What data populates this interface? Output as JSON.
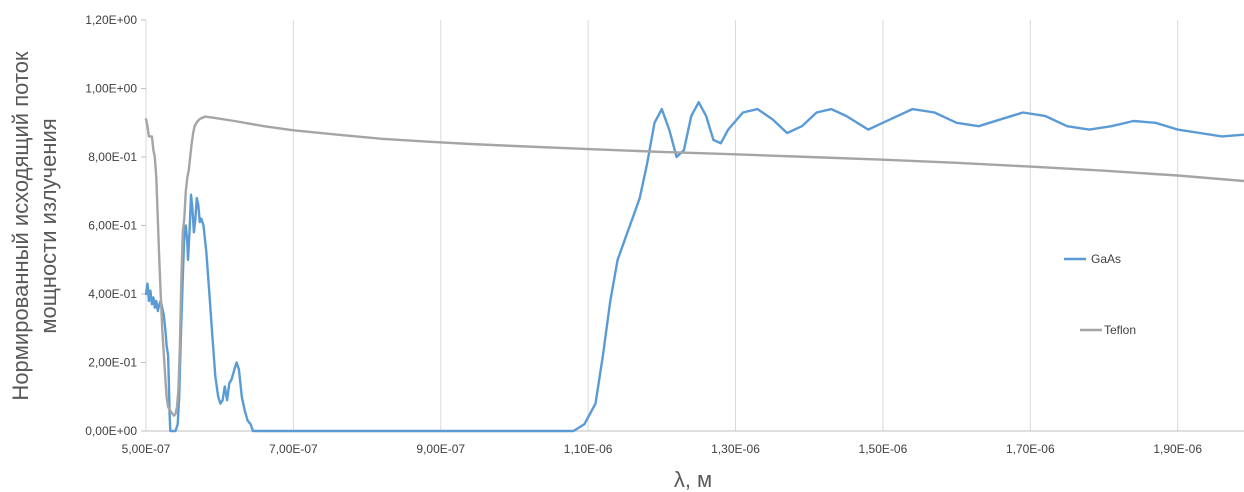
{
  "chart_data": {
    "type": "line",
    "xlabel": "λ, м",
    "ylabel_lines": [
      "Нормированный исходящий поток",
      "мощности излучения"
    ],
    "xlim": [
      5e-07,
      1.99e-06
    ],
    "ylim": [
      0,
      1.2
    ],
    "grid": "vertical",
    "legend_position": "right",
    "x_ticks": [
      5e-07,
      7e-07,
      9e-07,
      1.1e-06,
      1.3e-06,
      1.5e-06,
      1.7e-06,
      1.9e-06
    ],
    "x_tick_labels": [
      "5,00E-07",
      "7,00E-07",
      "9,00E-07",
      "1,10E-06",
      "1,30E-06",
      "1,50E-06",
      "1,70E-06",
      "1,90E-06"
    ],
    "y_ticks": [
      0,
      0.2,
      0.4,
      0.6,
      0.8,
      1.0,
      1.2
    ],
    "y_tick_labels": [
      "0,00E+00",
      "2,00E-01",
      "4,00E-01",
      "6,00E-01",
      "8,00E-01",
      "1,00E+00",
      "1,20E+00"
    ],
    "series": [
      {
        "name": "GaAs",
        "color": "#5b9bd5",
        "points": [
          [
            5e-07,
            0.4
          ],
          [
            5.02e-07,
            0.43
          ],
          [
            5.04e-07,
            0.38
          ],
          [
            5.06e-07,
            0.41
          ],
          [
            5.08e-07,
            0.37
          ],
          [
            5.1e-07,
            0.39
          ],
          [
            5.12e-07,
            0.36
          ],
          [
            5.14e-07,
            0.38
          ],
          [
            5.16e-07,
            0.35
          ],
          [
            5.18e-07,
            0.37
          ],
          [
            5.2e-07,
            0.38
          ],
          [
            5.22e-07,
            0.36
          ],
          [
            5.24e-07,
            0.34
          ],
          [
            5.26e-07,
            0.3
          ],
          [
            5.28e-07,
            0.25
          ],
          [
            5.3e-07,
            0.22
          ],
          [
            5.31e-07,
            0.15
          ],
          [
            5.32e-07,
            0.05
          ],
          [
            5.33e-07,
            0.0
          ],
          [
            5.4e-07,
            0.0
          ],
          [
            5.43e-07,
            0.02
          ],
          [
            5.45e-07,
            0.1
          ],
          [
            5.47e-07,
            0.25
          ],
          [
            5.5e-07,
            0.45
          ],
          [
            5.52e-07,
            0.57
          ],
          [
            5.54e-07,
            0.6
          ],
          [
            5.56e-07,
            0.55
          ],
          [
            5.57e-07,
            0.5
          ],
          [
            5.59e-07,
            0.58
          ],
          [
            5.61e-07,
            0.69
          ],
          [
            5.63e-07,
            0.65
          ],
          [
            5.65e-07,
            0.58
          ],
          [
            5.67e-07,
            0.62
          ],
          [
            5.69e-07,
            0.68
          ],
          [
            5.71e-07,
            0.66
          ],
          [
            5.73e-07,
            0.61
          ],
          [
            5.75e-07,
            0.62
          ],
          [
            5.78e-07,
            0.6
          ],
          [
            5.82e-07,
            0.52
          ],
          [
            5.86e-07,
            0.4
          ],
          [
            5.9e-07,
            0.28
          ],
          [
            5.94e-07,
            0.16
          ],
          [
            5.98e-07,
            0.1
          ],
          [
            6.01e-07,
            0.08
          ],
          [
            6.04e-07,
            0.09
          ],
          [
            6.07e-07,
            0.13
          ],
          [
            6.1e-07,
            0.09
          ],
          [
            6.13e-07,
            0.14
          ],
          [
            6.16e-07,
            0.15
          ],
          [
            6.2e-07,
            0.18
          ],
          [
            6.23e-07,
            0.2
          ],
          [
            6.26e-07,
            0.18
          ],
          [
            6.3e-07,
            0.1
          ],
          [
            6.34e-07,
            0.06
          ],
          [
            6.38e-07,
            0.03
          ],
          [
            6.42e-07,
            0.02
          ],
          [
            6.45e-07,
            0.0
          ],
          [
            1.08e-06,
            0.0
          ],
          [
            1.095e-06,
            0.02
          ],
          [
            1.11e-06,
            0.08
          ],
          [
            1.12e-06,
            0.22
          ],
          [
            1.13e-06,
            0.38
          ],
          [
            1.14e-06,
            0.5
          ],
          [
            1.15e-06,
            0.56
          ],
          [
            1.16e-06,
            0.62
          ],
          [
            1.17e-06,
            0.68
          ],
          [
            1.18e-06,
            0.78
          ],
          [
            1.19e-06,
            0.9
          ],
          [
            1.2e-06,
            0.94
          ],
          [
            1.21e-06,
            0.88
          ],
          [
            1.22e-06,
            0.8
          ],
          [
            1.23e-06,
            0.82
          ],
          [
            1.24e-06,
            0.92
          ],
          [
            1.25e-06,
            0.96
          ],
          [
            1.26e-06,
            0.92
          ],
          [
            1.27e-06,
            0.85
          ],
          [
            1.28e-06,
            0.84
          ],
          [
            1.29e-06,
            0.88
          ],
          [
            1.31e-06,
            0.93
          ],
          [
            1.33e-06,
            0.94
          ],
          [
            1.35e-06,
            0.91
          ],
          [
            1.37e-06,
            0.87
          ],
          [
            1.39e-06,
            0.89
          ],
          [
            1.41e-06,
            0.93
          ],
          [
            1.43e-06,
            0.94
          ],
          [
            1.45e-06,
            0.92
          ],
          [
            1.48e-06,
            0.88
          ],
          [
            1.51e-06,
            0.91
          ],
          [
            1.54e-06,
            0.94
          ],
          [
            1.57e-06,
            0.93
          ],
          [
            1.6e-06,
            0.9
          ],
          [
            1.63e-06,
            0.89
          ],
          [
            1.66e-06,
            0.91
          ],
          [
            1.69e-06,
            0.93
          ],
          [
            1.72e-06,
            0.92
          ],
          [
            1.75e-06,
            0.89
          ],
          [
            1.78e-06,
            0.88
          ],
          [
            1.81e-06,
            0.89
          ],
          [
            1.84e-06,
            0.905
          ],
          [
            1.87e-06,
            0.9
          ],
          [
            1.9e-06,
            0.88
          ],
          [
            1.93e-06,
            0.87
          ],
          [
            1.96e-06,
            0.86
          ],
          [
            1.99e-06,
            0.865
          ]
        ]
      },
      {
        "name": "Teflon",
        "color": "#a5a5a5",
        "points": [
          [
            5e-07,
            0.91
          ],
          [
            5.02e-07,
            0.89
          ],
          [
            5.04e-07,
            0.86
          ],
          [
            5.06e-07,
            0.86
          ],
          [
            5.08e-07,
            0.86
          ],
          [
            5.1e-07,
            0.82
          ],
          [
            5.12e-07,
            0.8
          ],
          [
            5.14e-07,
            0.74
          ],
          [
            5.16e-07,
            0.62
          ],
          [
            5.18e-07,
            0.5
          ],
          [
            5.2e-07,
            0.4
          ],
          [
            5.22e-07,
            0.3
          ],
          [
            5.24e-07,
            0.23
          ],
          [
            5.26e-07,
            0.16
          ],
          [
            5.28e-07,
            0.1
          ],
          [
            5.3e-07,
            0.07
          ],
          [
            5.33e-07,
            0.06
          ],
          [
            5.36e-07,
            0.05
          ],
          [
            5.38e-07,
            0.045
          ],
          [
            5.4e-07,
            0.05
          ],
          [
            5.42e-07,
            0.07
          ],
          [
            5.44e-07,
            0.12
          ],
          [
            5.46e-07,
            0.25
          ],
          [
            5.48e-07,
            0.45
          ],
          [
            5.5e-07,
            0.58
          ],
          [
            5.52e-07,
            0.62
          ],
          [
            5.54e-07,
            0.7
          ],
          [
            5.56e-07,
            0.74
          ],
          [
            5.58e-07,
            0.76
          ],
          [
            5.6e-07,
            0.8
          ],
          [
            5.62e-07,
            0.84
          ],
          [
            5.64e-07,
            0.87
          ],
          [
            5.66e-07,
            0.89
          ],
          [
            5.7e-07,
            0.905
          ],
          [
            5.74e-07,
            0.912
          ],
          [
            5.8e-07,
            0.918
          ],
          [
            5.9e-07,
            0.915
          ],
          [
            6.2e-07,
            0.905
          ],
          [
            6.6e-07,
            0.89
          ],
          [
            7e-07,
            0.878
          ],
          [
            7.6e-07,
            0.865
          ],
          [
            8.2e-07,
            0.853
          ],
          [
            8.8e-07,
            0.845
          ],
          [
            9.4e-07,
            0.838
          ],
          [
            1e-06,
            0.832
          ],
          [
            1.1e-06,
            0.823
          ],
          [
            1.2e-06,
            0.815
          ],
          [
            1.3e-06,
            0.808
          ],
          [
            1.4e-06,
            0.8
          ],
          [
            1.5e-06,
            0.792
          ],
          [
            1.6e-06,
            0.783
          ],
          [
            1.7e-06,
            0.772
          ],
          [
            1.8e-06,
            0.76
          ],
          [
            1.9e-06,
            0.746
          ],
          [
            1.99e-06,
            0.73
          ]
        ]
      }
    ]
  }
}
